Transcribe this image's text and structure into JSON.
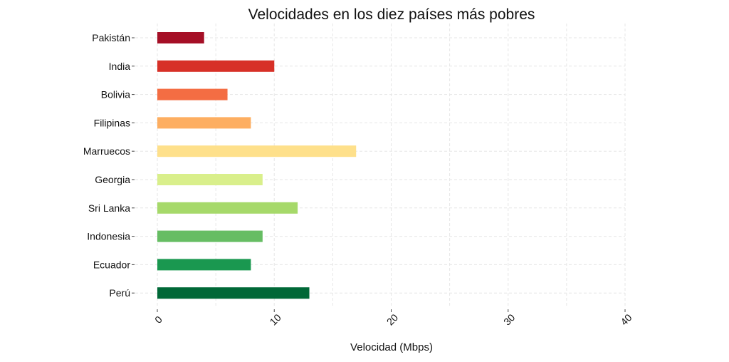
{
  "chart_data": {
    "type": "bar",
    "orientation": "horizontal",
    "title": "Velocidades en los diez países más pobres",
    "xlabel": "Velocidad (Mbps)",
    "ylabel": "",
    "categories": [
      "Pakistán",
      "India",
      "Bolivia",
      "Filipinas",
      "Marruecos",
      "Georgia",
      "Sri Lanka",
      "Indonesia",
      "Ecuador",
      "Perú"
    ],
    "values": [
      4,
      10,
      6,
      8,
      17,
      9,
      12,
      9,
      8,
      13
    ],
    "colors": [
      "#a50f26",
      "#d73027",
      "#f46d43",
      "#fdae61",
      "#fee08b",
      "#d9ef8b",
      "#a6d96a",
      "#66bd63",
      "#1a9850",
      "#006837"
    ],
    "xlim": [
      0,
      40
    ],
    "xticks": [
      "0",
      "10",
      "20",
      "30",
      "40"
    ],
    "grid": true,
    "legend": "none"
  }
}
